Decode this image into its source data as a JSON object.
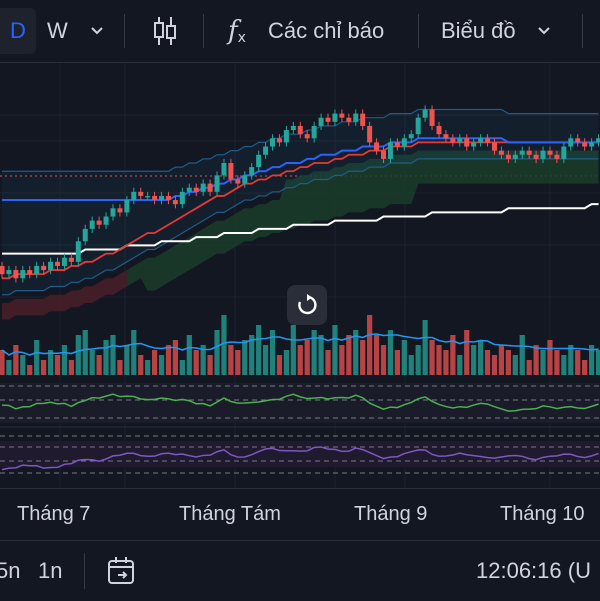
{
  "toolbar": {
    "interval_selected": "D",
    "interval_alt": "W",
    "chevron": "⌄",
    "chart_type_icon": "candlestick-icon",
    "indicators_icon": "fx-icon",
    "indicators_label": "Các chỉ báo",
    "chart_menu_label": "Biểu đồ",
    "fx_glyph": "f",
    "fx_sub": "x"
  },
  "time_axis": {
    "labels": [
      "Tháng 7",
      "Tháng Tám",
      "Tháng 9",
      "Tháng 10"
    ]
  },
  "bottom_bar": {
    "range_5n": "5n",
    "range_1n": "1n",
    "goto_icon": "calendar-goto-icon",
    "clock": "12:06:16 (U"
  },
  "reset_icon": "reset-rotate-icon",
  "colors": {
    "background": "#131722",
    "up": "#26a69a",
    "down": "#ef5350",
    "ma_blue": "#2962ff",
    "ma_red": "#e53935",
    "ma_white": "#ffffff",
    "bollinger": "#1e5c8a",
    "cloud_green": "#1b3d2a",
    "cloud_red": "#4a1f28",
    "rsi_line": "#4caf50",
    "stoch_line": "#7e57c2",
    "volume_ma": "#2196f3"
  },
  "chart_data": {
    "type": "candlestick",
    "candles": [
      {
        "o": 64,
        "c": 62
      },
      {
        "o": 62,
        "c": 63
      },
      {
        "o": 63,
        "c": 61
      },
      {
        "o": 61,
        "c": 63
      },
      {
        "o": 63,
        "c": 62
      },
      {
        "o": 62,
        "c": 64
      },
      {
        "o": 64,
        "c": 63
      },
      {
        "o": 63,
        "c": 65
      },
      {
        "o": 65,
        "c": 64
      },
      {
        "o": 64,
        "c": 66
      },
      {
        "o": 66,
        "c": 65
      },
      {
        "o": 65,
        "c": 70
      },
      {
        "o": 70,
        "c": 73
      },
      {
        "o": 73,
        "c": 75
      },
      {
        "o": 75,
        "c": 74
      },
      {
        "o": 74,
        "c": 76
      },
      {
        "o": 76,
        "c": 78
      },
      {
        "o": 78,
        "c": 77
      },
      {
        "o": 77,
        "c": 80
      },
      {
        "o": 80,
        "c": 82
      },
      {
        "o": 82,
        "c": 81
      },
      {
        "o": 81,
        "c": 81
      },
      {
        "o": 81,
        "c": 80
      },
      {
        "o": 80,
        "c": 81
      },
      {
        "o": 81,
        "c": 80
      },
      {
        "o": 80,
        "c": 79
      },
      {
        "o": 79,
        "c": 82
      },
      {
        "o": 82,
        "c": 83
      },
      {
        "o": 83,
        "c": 82
      },
      {
        "o": 82,
        "c": 84
      },
      {
        "o": 84,
        "c": 82
      },
      {
        "o": 82,
        "c": 86
      },
      {
        "o": 86,
        "c": 89
      },
      {
        "o": 89,
        "c": 85
      },
      {
        "o": 85,
        "c": 84
      },
      {
        "o": 84,
        "c": 86
      },
      {
        "o": 86,
        "c": 88
      },
      {
        "o": 88,
        "c": 91
      },
      {
        "o": 91,
        "c": 93
      },
      {
        "o": 93,
        "c": 95
      },
      {
        "o": 95,
        "c": 94
      },
      {
        "o": 94,
        "c": 97
      },
      {
        "o": 97,
        "c": 98
      },
      {
        "o": 98,
        "c": 96
      },
      {
        "o": 96,
        "c": 95
      },
      {
        "o": 95,
        "c": 98
      },
      {
        "o": 98,
        "c": 100
      },
      {
        "o": 100,
        "c": 99
      },
      {
        "o": 99,
        "c": 101
      },
      {
        "o": 101,
        "c": 100
      },
      {
        "o": 100,
        "c": 99
      },
      {
        "o": 99,
        "c": 101
      },
      {
        "o": 101,
        "c": 98
      },
      {
        "o": 98,
        "c": 94
      },
      {
        "o": 94,
        "c": 92
      },
      {
        "o": 92,
        "c": 90
      },
      {
        "o": 90,
        "c": 94
      },
      {
        "o": 94,
        "c": 93
      },
      {
        "o": 93,
        "c": 95
      },
      {
        "o": 95,
        "c": 96
      },
      {
        "o": 96,
        "c": 100
      },
      {
        "o": 100,
        "c": 102
      },
      {
        "o": 102,
        "c": 98
      },
      {
        "o": 98,
        "c": 96
      },
      {
        "o": 96,
        "c": 95
      },
      {
        "o": 95,
        "c": 94
      },
      {
        "o": 94,
        "c": 95
      },
      {
        "o": 95,
        "c": 93
      },
      {
        "o": 93,
        "c": 94
      },
      {
        "o": 94,
        "c": 95
      },
      {
        "o": 95,
        "c": 94
      },
      {
        "o": 94,
        "c": 92
      },
      {
        "o": 92,
        "c": 91
      },
      {
        "o": 91,
        "c": 90
      },
      {
        "o": 90,
        "c": 91
      },
      {
        "o": 91,
        "c": 92
      },
      {
        "o": 92,
        "c": 91
      },
      {
        "o": 91,
        "c": 90
      },
      {
        "o": 90,
        "c": 92
      },
      {
        "o": 92,
        "c": 91
      },
      {
        "o": 91,
        "c": 90
      },
      {
        "o": 90,
        "c": 93
      },
      {
        "o": 93,
        "c": 95
      },
      {
        "o": 95,
        "c": 94
      },
      {
        "o": 94,
        "c": 93
      },
      {
        "o": 93,
        "c": 94
      },
      {
        "o": 94,
        "c": 95
      }
    ],
    "volumes": [
      5,
      3,
      6,
      4,
      2,
      7,
      3,
      5,
      4,
      6,
      3,
      8,
      9,
      5,
      4,
      7,
      8,
      3,
      6,
      9,
      4,
      3,
      5,
      4,
      6,
      7,
      3,
      8,
      5,
      6,
      4,
      9,
      12,
      6,
      5,
      7,
      8,
      10,
      6,
      9,
      4,
      5,
      10,
      6,
      7,
      9,
      8,
      5,
      10,
      6,
      8,
      9,
      7,
      12,
      8,
      6,
      9,
      5,
      7,
      4,
      6,
      11,
      7,
      6,
      5,
      8,
      4,
      9,
      6,
      7,
      5,
      4,
      6,
      5,
      4,
      8,
      3,
      6,
      5,
      7,
      5,
      4,
      6,
      5,
      3,
      6,
      5
    ],
    "ma_blue": [
      80,
      80,
      80,
      80,
      80,
      80,
      80,
      80,
      80,
      80,
      80,
      80,
      80,
      80,
      80,
      80,
      80,
      80,
      80,
      80,
      80,
      80,
      80,
      80,
      80,
      81,
      81,
      82,
      82,
      83,
      83,
      84,
      84,
      85,
      85,
      86,
      86,
      87,
      87,
      88,
      88,
      89,
      89,
      89,
      90,
      90,
      91,
      91,
      91,
      92,
      92,
      92,
      93,
      93,
      93,
      93,
      94,
      94,
      94,
      94,
      95,
      95,
      95,
      95,
      95,
      95,
      95,
      95,
      95,
      95,
      95,
      95,
      95,
      94,
      94,
      94,
      94,
      94,
      94,
      94,
      94,
      94,
      94,
      94,
      94,
      94,
      94
    ],
    "ma_red": [
      61,
      61,
      62,
      62,
      62,
      62,
      62,
      63,
      63,
      63,
      64,
      64,
      65,
      65,
      66,
      67,
      67,
      68,
      69,
      70,
      71,
      72,
      72,
      73,
      74,
      75,
      76,
      77,
      78,
      79,
      80,
      81,
      81,
      82,
      83,
      84,
      84,
      85,
      85,
      86,
      86,
      87,
      87,
      88,
      88,
      89,
      89,
      89,
      90,
      90,
      91,
      91,
      91,
      92,
      92,
      92,
      93,
      93,
      93,
      93,
      94,
      94,
      94,
      94,
      94,
      94,
      94,
      94,
      94,
      94,
      94,
      94,
      94,
      94,
      94,
      94,
      94,
      94,
      94,
      94,
      94,
      94,
      94,
      94,
      94,
      94,
      94
    ],
    "ma_white": [
      67,
      67,
      67,
      67,
      67,
      67,
      67,
      67,
      67,
      67,
      67,
      67,
      68,
      68,
      68,
      68,
      68,
      68,
      69,
      69,
      69,
      69,
      69,
      70,
      70,
      70,
      70,
      70,
      71,
      71,
      71,
      71,
      72,
      72,
      72,
      72,
      72,
      73,
      73,
      73,
      73,
      73,
      74,
      74,
      74,
      74,
      74,
      74,
      75,
      75,
      75,
      75,
      75,
      75,
      75,
      76,
      76,
      76,
      76,
      76,
      76,
      76,
      77,
      77,
      77,
      77,
      77,
      77,
      77,
      77,
      77,
      77,
      77,
      78,
      78,
      78,
      78,
      78,
      78,
      78,
      78,
      78,
      78,
      78,
      78,
      79,
      79
    ],
    "x_labels": [
      "Tháng 7",
      "Tháng Tám",
      "Tháng 9",
      "Tháng 10"
    ]
  }
}
